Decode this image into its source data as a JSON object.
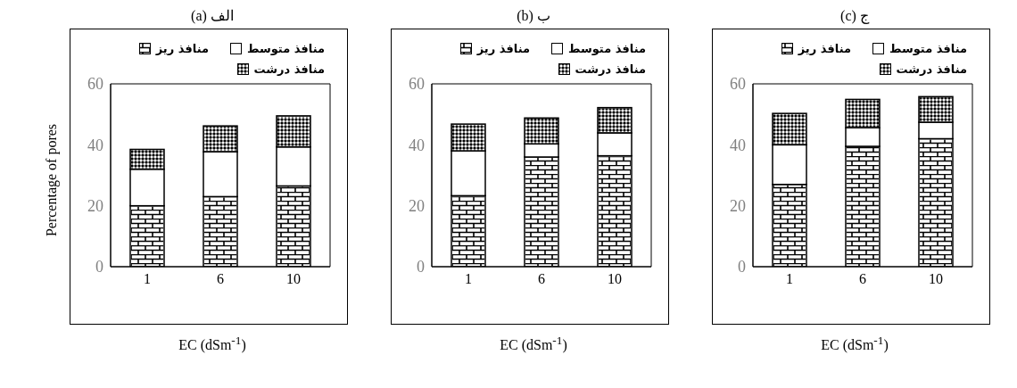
{
  "chart_data": [
    {
      "type": "bar",
      "title": "الف (a)",
      "xlabel": "EC (dSm$^{-1}$)",
      "ylabel": "Percentage of pores",
      "categories": [
        "1",
        "6",
        "10"
      ],
      "stacked": true,
      "legend": "top",
      "ylim": [
        0,
        60
      ],
      "yticks": [
        0,
        20,
        40,
        60
      ],
      "series": [
        {
          "name": "منافذ ریز",
          "color": "#ffffff",
          "values": [
            20,
            23,
            26.5
          ]
        },
        {
          "name": "منافذ متوسط",
          "color": "#ffffff",
          "values": [
            12,
            14.7,
            12.8
          ]
        },
        {
          "name": "منافذ درشت",
          "color": "#808080",
          "values": [
            6.5,
            8.5,
            10.2
          ]
        }
      ]
    },
    {
      "type": "bar",
      "title": "ب (b)",
      "xlabel": "EC (dSm$^{-1}$)",
      "categories": [
        "1",
        "6",
        "10"
      ],
      "stacked": true,
      "legend": "top",
      "ylim": [
        0,
        60
      ],
      "yticks": [
        0,
        20,
        40,
        60
      ],
      "series": [
        {
          "name": "منافذ ریز",
          "color": "#ffffff",
          "values": [
            23.3,
            36,
            36.4
          ]
        },
        {
          "name": "منافذ متوسط",
          "color": "#ffffff",
          "values": [
            14.7,
            4.3,
            7.5
          ]
        },
        {
          "name": "منافذ درشت",
          "color": "#808080",
          "values": [
            8.8,
            8.5,
            8.3
          ]
        }
      ]
    },
    {
      "type": "bar",
      "title": "ج (c)",
      "xlabel": "EC (dSm$^{-1}$)",
      "categories": [
        "1",
        "6",
        "10"
      ],
      "stacked": true,
      "legend": "top",
      "ylim": [
        0,
        60
      ],
      "yticks": [
        0,
        20,
        40,
        60
      ],
      "series": [
        {
          "name": "منافذ ریز",
          "color": "#ffffff",
          "values": [
            27,
            39.5,
            42
          ]
        },
        {
          "name": "منافذ متوسط",
          "color": "#ffffff",
          "values": [
            13,
            6.1,
            5.4
          ]
        },
        {
          "name": "منافذ درشت",
          "color": "#808080",
          "values": [
            10.3,
            9.3,
            8.4
          ]
        }
      ]
    }
  ]
}
